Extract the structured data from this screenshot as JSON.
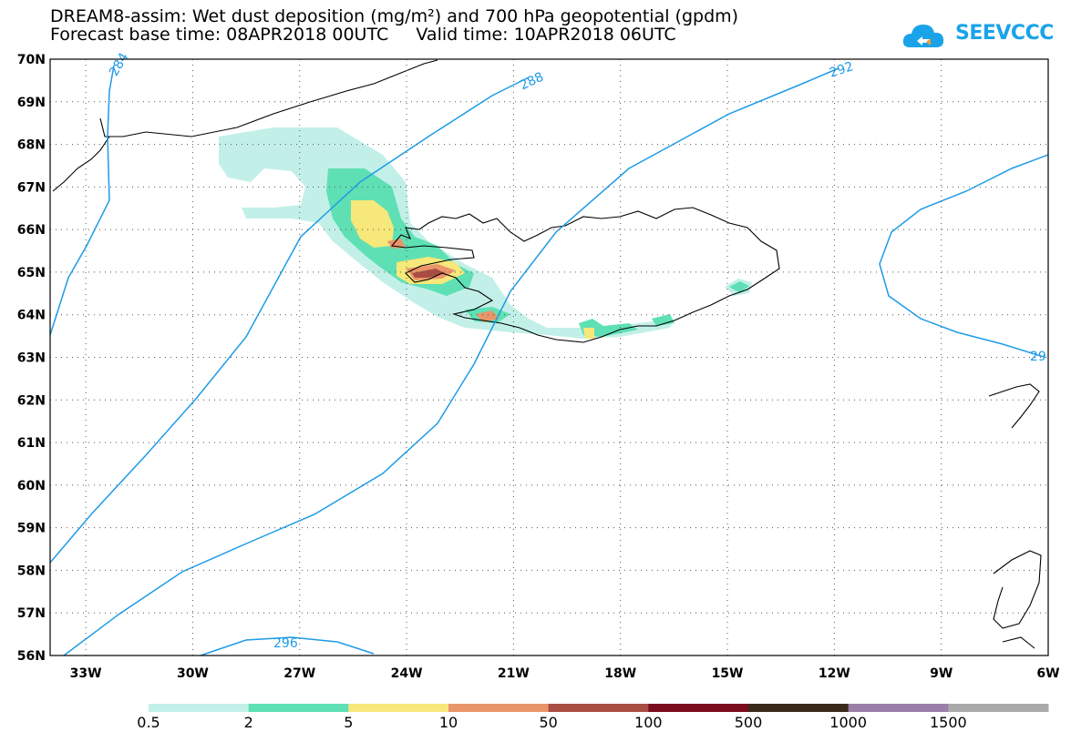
{
  "header": {
    "title_line1": "DREAM8-assim: Wet dust deposition (mg/m²) and 700 hPa geopotential (gpdm)",
    "title_line2": "Forecast base time: 08APR2018 00UTC     Valid time: 10APR2018 06UTC",
    "logo_text": "SEEVCCC",
    "logo_color": "#1aa3e8"
  },
  "map": {
    "lat_labels": [
      "70N",
      "69N",
      "68N",
      "67N",
      "66N",
      "65N",
      "64N",
      "63N",
      "62N",
      "61N",
      "60N",
      "59N",
      "58N",
      "57N",
      "56N"
    ],
    "lon_labels": [
      "33W",
      "30W",
      "27W",
      "24W",
      "21W",
      "18W",
      "15W",
      "12W",
      "9W",
      "6W"
    ],
    "contour_labels": [
      "284",
      "288",
      "292",
      "296",
      "29"
    ],
    "contour_color": "#1e9be8",
    "coast_color": "#000000"
  },
  "legend": {
    "labels": [
      "0.5",
      "2",
      "5",
      "10",
      "50",
      "100",
      "500",
      "1000",
      "1500"
    ],
    "colors": [
      "#c2f0e8",
      "#5fe0b4",
      "#f6e87a",
      "#e9956a",
      "#a94d43",
      "#7a0c1e",
      "#3a2a1a",
      "#9a7fa8",
      "#aaaaaa"
    ]
  }
}
